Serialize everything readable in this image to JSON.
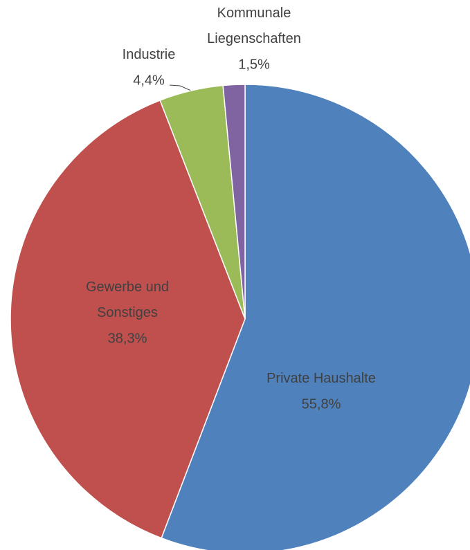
{
  "chart_data": {
    "type": "pie",
    "categories": [
      "Private Haushalte",
      "Gewerbe und\nSonstiges",
      "Industrie",
      "Kommunale\nLiegenschaften"
    ],
    "values": [
      55.8,
      38.3,
      4.4,
      1.5
    ],
    "value_labels": [
      "55,8%",
      "38,3%",
      "4,4%",
      "1,5%"
    ],
    "colors": [
      "#4f81bd",
      "#c0504d",
      "#9bbb59",
      "#8064a2"
    ]
  }
}
